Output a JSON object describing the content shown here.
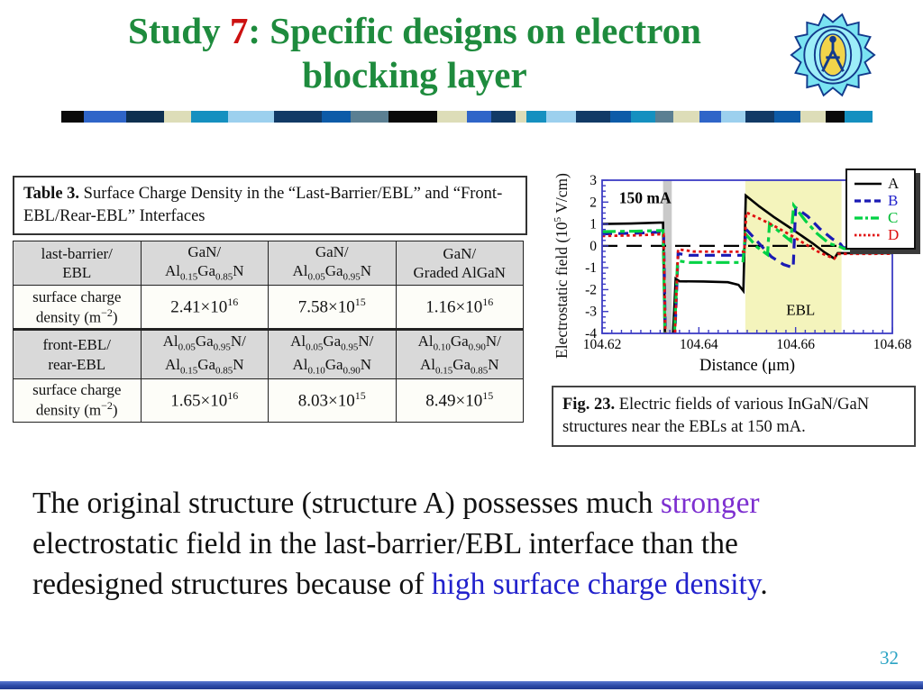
{
  "title": {
    "prefix": "Study ",
    "number": "7",
    "suffix": ": Specific designs on electron",
    "line2": "blocking layer",
    "color": "#1e8b3d",
    "number_color": "#cc1111"
  },
  "logo_name": "gear-university-emblem",
  "divider": {
    "segments": [
      [
        "#0a0a0a",
        28
      ],
      [
        "#2f65c8",
        52
      ],
      [
        "#0e3050",
        46
      ],
      [
        "#ddddb8",
        33
      ],
      [
        "#1590c0",
        46
      ],
      [
        "#9cd0ee",
        56
      ],
      [
        "#123a66",
        58
      ],
      [
        "#0d5ba8",
        36
      ],
      [
        "#5b7f92",
        46
      ],
      [
        "#0a0a0a",
        60
      ],
      [
        "#ddddb8",
        36
      ],
      [
        "#2f65c8",
        30
      ],
      [
        "#123a66",
        30
      ],
      [
        "#ddddb8",
        14
      ],
      [
        "#1590c0",
        24
      ],
      [
        "#9cd0ee",
        36
      ],
      [
        "#123a66",
        42
      ],
      [
        "#0d5ba8",
        26
      ],
      [
        "#1590c0",
        30
      ],
      [
        "#5b7f92",
        22
      ],
      [
        "#ddddb8",
        32
      ],
      [
        "#2f65c8",
        26
      ],
      [
        "#9cd0ee",
        30
      ],
      [
        "#123a66",
        36
      ],
      [
        "#0d5ba8",
        32
      ],
      [
        "#ddddb8",
        30
      ],
      [
        "#0a0a0a",
        24
      ],
      [
        "#1590c0",
        34
      ]
    ]
  },
  "table": {
    "caption_bold": "Table 3.",
    "caption_rest": " Surface Charge Density in the “Last-Barrier/EBL” and “Front-EBL/Rear-EBL” Interfaces",
    "rows": [
      {
        "header": true,
        "cells": [
          "last-barrier/\nEBL",
          "GaN/\nAl{0.15}Ga{0.85}N",
          "GaN/\nAl{0.05}Ga{0.95}N",
          "GaN/\nGraded AlGaN"
        ]
      },
      {
        "header": false,
        "cells": [
          "surface charge\ndensity (m[−2])",
          "2.41×10[16]",
          "7.58×10[15]",
          "1.16×10[16]"
        ]
      },
      {
        "header": true,
        "cells": [
          "front-EBL/\nrear-EBL",
          "Al{0.05}Ga{0.95}N/\nAl{0.15}Ga{0.85}N",
          "Al{0.05}Ga{0.95}N/\nAl{0.10}Ga{0.90}N",
          "Al{0.10}Ga{0.90}N/\nAl{0.15}Ga{0.85}N"
        ]
      },
      {
        "header": false,
        "cells": [
          "surface charge\ndensity (m[−2])",
          "1.65×10[16]",
          "8.03×10[15]",
          "8.49×10[15]"
        ]
      }
    ]
  },
  "chart_data": {
    "type": "line",
    "xlabel": "Distance (μm)",
    "ylabel": "Electrostatic field (10[5] V/cm)",
    "annotation": "150 mA",
    "xlim": [
      104.62,
      104.68
    ],
    "ylim": [
      -4,
      3
    ],
    "xticks": [
      104.62,
      104.64,
      104.66,
      104.68
    ],
    "yticks": [
      3,
      2,
      1,
      0,
      -1,
      -2,
      -3,
      -4
    ],
    "frame_color": "#3c3cc4",
    "zero_line": true,
    "regions": [
      {
        "label": "",
        "x0": 104.6326,
        "x1": 104.6344,
        "color": "#c9c9c9"
      },
      {
        "label": "EBL",
        "x0": 104.6496,
        "x1": 104.6695,
        "color": "#f4f4bc"
      }
    ],
    "legend_position": "top-right",
    "series": [
      {
        "name": "A",
        "color": "#000000",
        "label_color": "#111111",
        "style": "solid",
        "width": 2.6,
        "points": [
          [
            104.62,
            1.0
          ],
          [
            104.626,
            1.02
          ],
          [
            104.6318,
            1.06
          ],
          [
            104.6326,
            1.06
          ],
          [
            104.633,
            -4.3
          ],
          [
            104.6346,
            -4.3
          ],
          [
            104.6352,
            -1.5
          ],
          [
            104.636,
            -1.62
          ],
          [
            104.641,
            -1.63
          ],
          [
            104.646,
            -1.66
          ],
          [
            104.6482,
            -1.78
          ],
          [
            104.6492,
            -2.06
          ],
          [
            104.6497,
            2.3
          ],
          [
            104.6525,
            1.8
          ],
          [
            104.6555,
            1.32
          ],
          [
            104.6585,
            0.88
          ],
          [
            104.661,
            0.5
          ],
          [
            104.6635,
            0.12
          ],
          [
            104.666,
            -0.3
          ],
          [
            104.668,
            -0.58
          ],
          [
            104.6687,
            -0.33
          ],
          [
            104.68,
            -0.33
          ]
        ]
      },
      {
        "name": "B",
        "color": "#1a1ab4",
        "label_color": "#2222cc",
        "style": "dashed",
        "width": 3.2,
        "points": [
          [
            104.62,
            0.55
          ],
          [
            104.627,
            0.58
          ],
          [
            104.632,
            0.63
          ],
          [
            104.6327,
            0.63
          ],
          [
            104.6331,
            -4.3
          ],
          [
            104.635,
            -4.3
          ],
          [
            104.6357,
            -0.35
          ],
          [
            104.638,
            -0.43
          ],
          [
            104.6493,
            -0.43
          ],
          [
            104.6498,
            0.75
          ],
          [
            104.6525,
            0.1
          ],
          [
            104.655,
            -0.5
          ],
          [
            104.6575,
            -0.85
          ],
          [
            104.6595,
            -1.0
          ],
          [
            104.66,
            1.75
          ],
          [
            104.6625,
            1.35
          ],
          [
            104.665,
            0.78
          ],
          [
            104.6675,
            0.33
          ],
          [
            104.6693,
            0.08
          ],
          [
            104.6698,
            -0.08
          ],
          [
            104.68,
            -0.08
          ]
        ]
      },
      {
        "name": "C",
        "color": "#00d244",
        "label_color": "#00bb33",
        "style": "dashdot",
        "width": 3.2,
        "points": [
          [
            104.62,
            0.65
          ],
          [
            104.627,
            0.67
          ],
          [
            104.632,
            0.7
          ],
          [
            104.6326,
            0.7
          ],
          [
            104.633,
            -4.3
          ],
          [
            104.6349,
            -4.3
          ],
          [
            104.6356,
            -0.68
          ],
          [
            104.638,
            -0.76
          ],
          [
            104.6491,
            -0.76
          ],
          [
            104.6496,
            0.55
          ],
          [
            104.652,
            -0.05
          ],
          [
            104.6542,
            -0.4
          ],
          [
            104.6546,
            1.02
          ],
          [
            104.657,
            0.58
          ],
          [
            104.659,
            0.22
          ],
          [
            104.6596,
            1.85
          ],
          [
            104.662,
            1.15
          ],
          [
            104.6645,
            0.55
          ],
          [
            104.667,
            0.1
          ],
          [
            104.6693,
            -0.05
          ],
          [
            104.67,
            -0.13
          ],
          [
            104.68,
            -0.13
          ]
        ]
      },
      {
        "name": "D",
        "color": "#e01010",
        "label_color": "#dd1111",
        "style": "dotted",
        "width": 2.8,
        "points": [
          [
            104.62,
            0.45
          ],
          [
            104.627,
            0.48
          ],
          [
            104.632,
            0.53
          ],
          [
            104.6327,
            0.53
          ],
          [
            104.6331,
            -4.3
          ],
          [
            104.635,
            -4.3
          ],
          [
            104.6357,
            -0.16
          ],
          [
            104.639,
            -0.26
          ],
          [
            104.6494,
            -0.27
          ],
          [
            104.6498,
            1.53
          ],
          [
            104.6525,
            1.25
          ],
          [
            104.6555,
            0.92
          ],
          [
            104.6585,
            0.55
          ],
          [
            104.6615,
            0.15
          ],
          [
            104.6645,
            -0.25
          ],
          [
            104.6665,
            -0.45
          ],
          [
            104.668,
            -0.58
          ],
          [
            104.6688,
            -0.37
          ],
          [
            104.68,
            -0.36
          ]
        ]
      }
    ]
  },
  "figure": {
    "caption_bold": "Fig. 23.",
    "caption_rest": " Electric fields of various InGaN/GaN structures near the EBLs at 150 mA."
  },
  "paragraph": {
    "lines": [
      [
        {
          "text": "The original structure (structure A) possesses much ",
          "color": "#111111"
        },
        {
          "text": "stronger",
          "color": "#7d2fd0"
        }
      ],
      [
        {
          "text": "electrostatic field in the last-barrier/EBL interface than the",
          "color": "#111111"
        }
      ],
      [
        {
          "text": "redesigned structures because of ",
          "color": "#111111"
        },
        {
          "text": "high surface charge density",
          "color": "#2222cc"
        },
        {
          "text": ".",
          "color": "#111111"
        }
      ]
    ]
  },
  "page_number": "32"
}
